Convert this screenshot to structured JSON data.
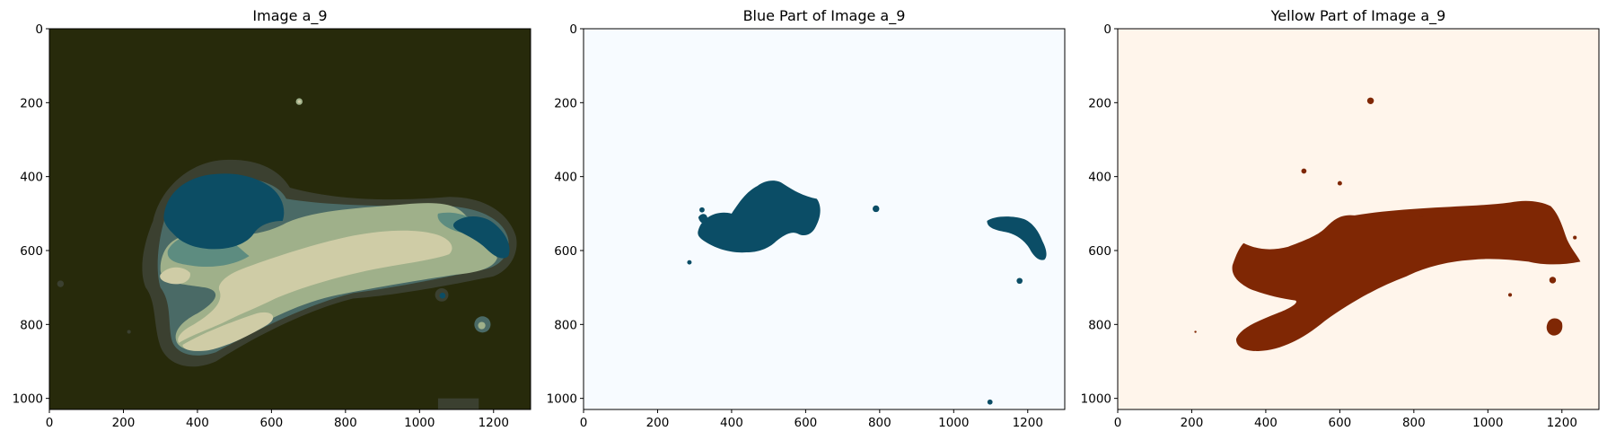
{
  "chart_data": [
    {
      "type": "image",
      "title": "Image a_9",
      "xlim": [
        0,
        1300
      ],
      "ylim": [
        1030,
        0
      ],
      "xticks": [
        0,
        200,
        400,
        600,
        800,
        1000,
        1200
      ],
      "yticks": [
        0,
        200,
        400,
        600,
        800,
        1000
      ],
      "colors": {
        "background": "#272a0b",
        "dark_edge": "#3b4030",
        "blue": "#0c4d64",
        "teal": "#5d8c80",
        "sage": "#9fb08a",
        "cream": "#cfcca6",
        "halo": "#4a6a66"
      }
    },
    {
      "type": "image",
      "title": "Blue Part of Image a_9",
      "xlim": [
        0,
        1300
      ],
      "ylim": [
        1030,
        0
      ],
      "xticks": [
        0,
        200,
        400,
        600,
        800,
        1000,
        1200
      ],
      "yticks": [
        0,
        200,
        400,
        600,
        800,
        1000
      ],
      "colors": {
        "background": "#f7fbff",
        "mask": "#0b4d66"
      }
    },
    {
      "type": "image",
      "title": "Yellow Part of Image a_9",
      "xlim": [
        0,
        1300
      ],
      "ylim": [
        1030,
        0
      ],
      "xticks": [
        0,
        200,
        400,
        600,
        800,
        1000,
        1200
      ],
      "yticks": [
        0,
        200,
        400,
        600,
        800,
        1000
      ],
      "colors": {
        "background": "#fff5eb",
        "mask": "#7f2704"
      }
    }
  ]
}
